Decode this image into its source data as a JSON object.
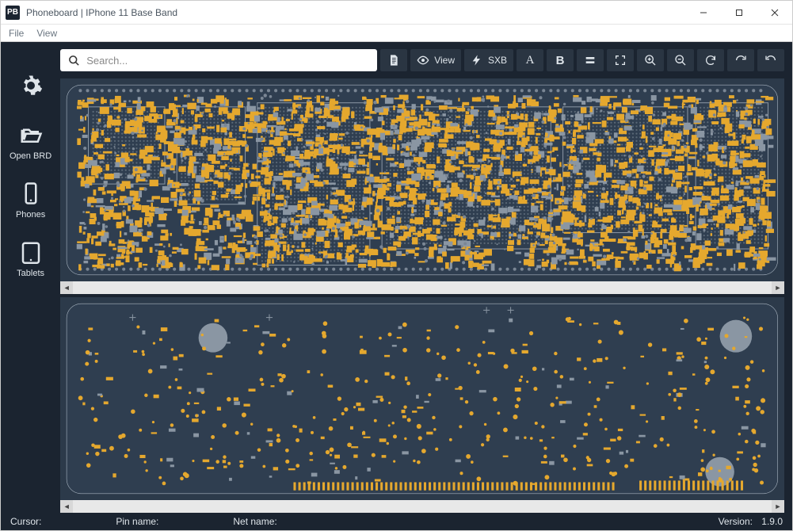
{
  "window": {
    "logo_text": "PB",
    "title": "Phoneboard | IPhone 11 Base Band"
  },
  "menu": {
    "items": [
      "File",
      "View"
    ]
  },
  "search": {
    "placeholder": "Search..."
  },
  "toolbar": {
    "view_label": "View",
    "sxb_label": "SXB",
    "letter_a": "A",
    "letter_b": "B"
  },
  "sidebar": {
    "items": [
      {
        "id": "settings",
        "label": ""
      },
      {
        "id": "open",
        "label": "Open BRD"
      },
      {
        "id": "phones",
        "label": "Phones"
      },
      {
        "id": "tablets",
        "label": "Tablets"
      }
    ]
  },
  "status": {
    "cursor": "Cursor:",
    "pinname": "Pin name:",
    "netname": "Net name:",
    "version_label": "Version:",
    "version": "1.9.0"
  },
  "board": {
    "background": "#2c3a4a",
    "outline": "#a8b4c0",
    "pad_color": "#e5a82e",
    "silk_color": "#8a96a3",
    "via_color": "#7a8694",
    "grid_color": "#5a6876"
  }
}
